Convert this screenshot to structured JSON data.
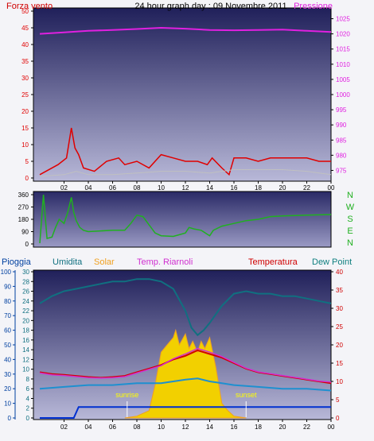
{
  "colors": {
    "wind": "#e00000",
    "pressure": "#e020e0",
    "direction": "#20b020",
    "humidity": "#107080",
    "solar": "#f0a020",
    "riarnoli": "#d030d0",
    "temperature": "#d00000",
    "dewpoint": "#108080",
    "rain": "#0030d0",
    "axis_blue": "#0040a0"
  },
  "header": {
    "wind_label": "Forza vento",
    "title": "24 hour graph day : 09 Novembre 2011",
    "pressure_label": "Pressione"
  },
  "lower_header": {
    "rain": "Pioggia",
    "humidity": "Umidita",
    "solar": "Solar",
    "riarnoli": "Temp. Riarnoli",
    "temperature": "Temperatura",
    "dewpoint": "Dew Point"
  },
  "annotations": {
    "sunrise": "sunrise",
    "sunset": "sunset"
  },
  "direction_letters": [
    "N",
    "W",
    "S",
    "E",
    "N"
  ],
  "chart_data": [
    {
      "type": "line",
      "name": "wind-pressure",
      "x_ticks": [
        "02",
        "04",
        "06",
        "08",
        "10",
        "12",
        "14",
        "16",
        "18",
        "20",
        "22",
        "00"
      ],
      "y_left_ticks": [
        0,
        5,
        10,
        15,
        20,
        25,
        30,
        35,
        40,
        45,
        50
      ],
      "y_right_ticks": [
        975,
        980,
        985,
        990,
        995,
        1000,
        1005,
        1010,
        1015,
        1020,
        1025
      ],
      "y_left_lim": [
        0,
        50
      ],
      "y_right_lim": [
        972.5,
        1027.5
      ],
      "pressure": {
        "x": [
          0,
          2,
          4,
          6,
          8,
          10,
          12,
          14,
          16,
          18,
          20,
          22,
          24
        ],
        "y": [
          1020.0,
          1020.5,
          1021.0,
          1021.3,
          1021.6,
          1022.0,
          1021.7,
          1021.3,
          1021.2,
          1021.3,
          1021.4,
          1021.0,
          1020.6
        ]
      },
      "wind_gust": {
        "x": [
          0,
          1.5,
          2.2,
          2.6,
          2.9,
          3.2,
          3.6,
          4.5,
          5.5,
          6.5,
          7.0,
          8.0,
          9.0,
          10.0,
          11.0,
          12.0,
          13.0,
          13.8,
          14.2,
          15.0,
          15.6,
          16.0,
          17.0,
          18.0,
          19.0,
          20.0,
          21.0,
          22.0,
          23.0,
          24.0
        ],
        "y": [
          1,
          4,
          6,
          15,
          9,
          7,
          3,
          2,
          5,
          6,
          4,
          5,
          3,
          7,
          6,
          5,
          5,
          4,
          6,
          3,
          1,
          6,
          6,
          5,
          6,
          6,
          6,
          6,
          5,
          5
        ]
      },
      "wind_avg": {
        "x": [
          0,
          2,
          3,
          4,
          6,
          8,
          10,
          12,
          14,
          16,
          18,
          20,
          22,
          24
        ],
        "y": [
          0.5,
          1,
          2,
          1,
          1,
          1.5,
          2,
          2,
          1.5,
          2.5,
          2.5,
          2.5,
          2,
          1
        ]
      }
    },
    {
      "type": "line",
      "name": "wind-direction",
      "y_ticks": [
        0,
        90,
        180,
        270,
        360
      ],
      "y_lim": [
        0,
        360
      ],
      "x": [
        0,
        0.3,
        0.6,
        1,
        1.3,
        1.6,
        2,
        2.3,
        2.6,
        2.8,
        3,
        3.3,
        3.6,
        4,
        5,
        6,
        7,
        7.5,
        8,
        8.5,
        9,
        9.5,
        10,
        11,
        12,
        12.3,
        12.7,
        13.3,
        14,
        14.3,
        15,
        16,
        17,
        18,
        19,
        20,
        22,
        24
      ],
      "y": [
        5,
        360,
        40,
        50,
        120,
        180,
        150,
        230,
        340,
        230,
        170,
        120,
        100,
        90,
        95,
        100,
        100,
        150,
        210,
        200,
        140,
        80,
        60,
        55,
        80,
        120,
        110,
        100,
        60,
        100,
        130,
        150,
        170,
        180,
        200,
        205,
        210,
        215
      ]
    },
    {
      "type": "line",
      "name": "temperature-humidity-solar",
      "y_rain_ticks": [
        0,
        10,
        20,
        30,
        40,
        50,
        60,
        70,
        80,
        90,
        100
      ],
      "y_humidity_ticks": [
        0,
        2,
        4,
        6,
        8,
        10,
        12,
        14,
        16,
        18,
        20,
        22,
        24,
        26,
        28,
        30
      ],
      "y_temp_ticks": [
        0,
        5,
        10,
        15,
        20,
        25,
        30,
        35,
        40
      ],
      "humidity_lim": [
        0,
        30
      ],
      "temp_lim": [
        0,
        40
      ],
      "humidity": {
        "x": [
          0,
          1,
          2,
          3,
          4,
          5,
          6,
          7,
          8,
          9,
          10,
          11,
          12,
          12.5,
          13,
          13.5,
          14,
          15,
          16,
          17,
          18,
          19,
          20,
          21,
          22,
          23,
          24
        ],
        "y": [
          23.5,
          25,
          26,
          26.5,
          27,
          27.5,
          28,
          28,
          28.5,
          28.5,
          28,
          26.5,
          22,
          18.5,
          17,
          18,
          19.5,
          23,
          25.5,
          26,
          25.5,
          25.5,
          25,
          25,
          24.5,
          24,
          23.5
        ]
      },
      "temperature": {
        "x": [
          0,
          1,
          2,
          3,
          4,
          5,
          6,
          7,
          8,
          9,
          10,
          11,
          12,
          13,
          14,
          15,
          16,
          17,
          18,
          19,
          20,
          21,
          22,
          23,
          24
        ],
        "y": [
          12.5,
          12,
          11.8,
          11.5,
          11.2,
          11,
          11.2,
          11.5,
          12.5,
          13.5,
          14.5,
          16,
          17,
          18.5,
          17.5,
          16.5,
          15,
          13.5,
          12.5,
          12,
          11.5,
          11,
          10.5,
          10,
          9.5
        ]
      },
      "riarnoli": {
        "x": [
          0,
          1,
          2,
          3,
          4,
          5,
          6,
          7,
          8,
          9,
          10,
          11,
          12,
          13,
          14,
          15,
          16,
          17,
          18,
          19,
          20,
          21,
          22,
          23,
          24
        ],
        "y": [
          12.3,
          11.8,
          11.6,
          11.3,
          11.0,
          10.9,
          11.0,
          11.3,
          12.3,
          13.3,
          14.3,
          16.2,
          17.5,
          19,
          18,
          16.8,
          15.2,
          13.6,
          12.6,
          12.1,
          11.6,
          11.1,
          10.6,
          10.1,
          9.8
        ]
      },
      "dewpoint": {
        "x": [
          0,
          2,
          4,
          6,
          8,
          10,
          11,
          12,
          13,
          14,
          15,
          16,
          18,
          20,
          22,
          24
        ],
        "y": [
          8,
          8.5,
          9,
          9,
          9.5,
          9.5,
          10,
          10.5,
          10.8,
          10,
          9.5,
          9,
          8.5,
          8,
          8,
          7.5
        ]
      },
      "solar": {
        "x": [
          7,
          8,
          9,
          9.5,
          10,
          10.5,
          11,
          11.2,
          11.5,
          12,
          12.3,
          12.6,
          13,
          13.3,
          13.6,
          14,
          14.5,
          15,
          15.5,
          16,
          17
        ],
        "y": [
          0,
          0.5,
          2,
          9,
          18,
          20,
          22,
          24,
          20,
          23,
          19,
          21,
          18,
          21,
          19,
          22,
          14,
          4,
          2,
          0.5,
          0
        ]
      },
      "rain": {
        "x": [
          0,
          2.8,
          3.2,
          4,
          24
        ],
        "y": [
          0,
          0,
          3,
          3,
          3
        ]
      }
    }
  ]
}
